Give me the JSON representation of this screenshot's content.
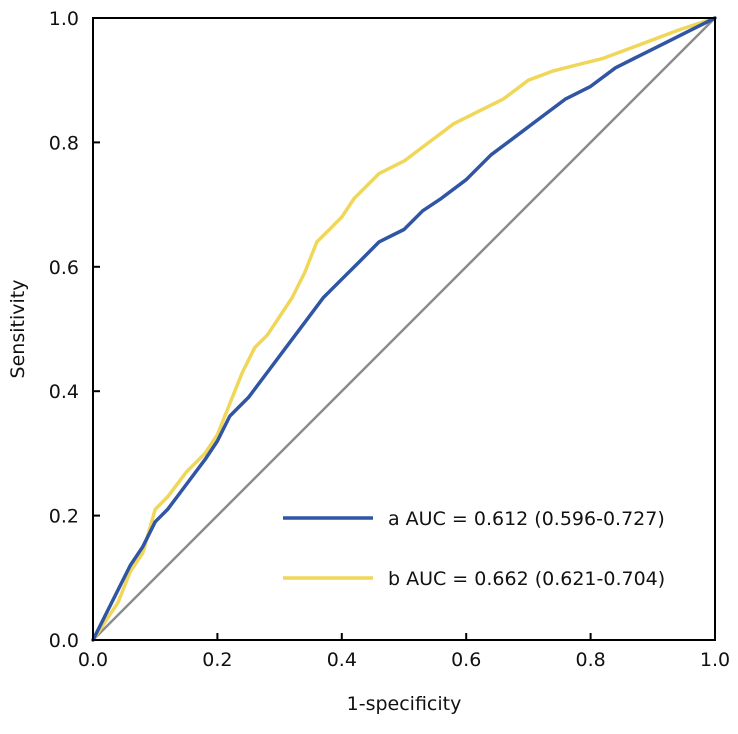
{
  "chart_data": {
    "type": "line",
    "title": "",
    "xlabel": "1-specificity",
    "ylabel": "Sensitivity",
    "xlim": [
      0,
      1
    ],
    "ylim": [
      0,
      1
    ],
    "x_ticks": [
      "0.0",
      "0.2",
      "0.4",
      "0.6",
      "0.8",
      "1.0"
    ],
    "y_ticks": [
      "0.0",
      "0.2",
      "0.4",
      "0.6",
      "0.8",
      "1.0"
    ],
    "grid": false,
    "legend_position": "bottom-right",
    "reference_line": {
      "name": "chance diagonal",
      "x": [
        0,
        1
      ],
      "y": [
        0,
        1
      ],
      "color": "#8c8c8c"
    },
    "series": [
      {
        "name": "a AUC = 0.612 (0.596-0.727)",
        "color": "#2f55a4",
        "x": [
          0,
          0.02,
          0.04,
          0.06,
          0.08,
          0.1,
          0.12,
          0.15,
          0.18,
          0.2,
          0.22,
          0.25,
          0.28,
          0.31,
          0.34,
          0.37,
          0.4,
          0.43,
          0.46,
          0.5,
          0.53,
          0.56,
          0.6,
          0.64,
          0.68,
          0.72,
          0.76,
          0.8,
          0.84,
          0.88,
          0.92,
          0.96,
          1.0
        ],
        "y": [
          0,
          0.04,
          0.08,
          0.12,
          0.15,
          0.19,
          0.21,
          0.25,
          0.29,
          0.32,
          0.36,
          0.39,
          0.43,
          0.47,
          0.51,
          0.55,
          0.58,
          0.61,
          0.64,
          0.66,
          0.69,
          0.71,
          0.74,
          0.78,
          0.81,
          0.84,
          0.87,
          0.89,
          0.92,
          0.94,
          0.96,
          0.98,
          1.0
        ]
      },
      {
        "name": "b AUC = 0.662 (0.621-0.704)",
        "color": "#f0d75a",
        "x": [
          0,
          0.02,
          0.04,
          0.06,
          0.08,
          0.1,
          0.12,
          0.15,
          0.18,
          0.2,
          0.22,
          0.24,
          0.26,
          0.28,
          0.3,
          0.32,
          0.34,
          0.36,
          0.38,
          0.4,
          0.42,
          0.44,
          0.46,
          0.5,
          0.54,
          0.58,
          0.62,
          0.66,
          0.7,
          0.74,
          0.78,
          0.82,
          0.86,
          0.9,
          0.94,
          0.97,
          1.0
        ],
        "y": [
          0,
          0.03,
          0.06,
          0.11,
          0.14,
          0.21,
          0.23,
          0.27,
          0.3,
          0.33,
          0.38,
          0.43,
          0.47,
          0.49,
          0.52,
          0.55,
          0.59,
          0.64,
          0.66,
          0.68,
          0.71,
          0.73,
          0.75,
          0.77,
          0.8,
          0.83,
          0.85,
          0.87,
          0.9,
          0.915,
          0.925,
          0.935,
          0.95,
          0.965,
          0.98,
          0.99,
          1.0
        ]
      }
    ]
  }
}
